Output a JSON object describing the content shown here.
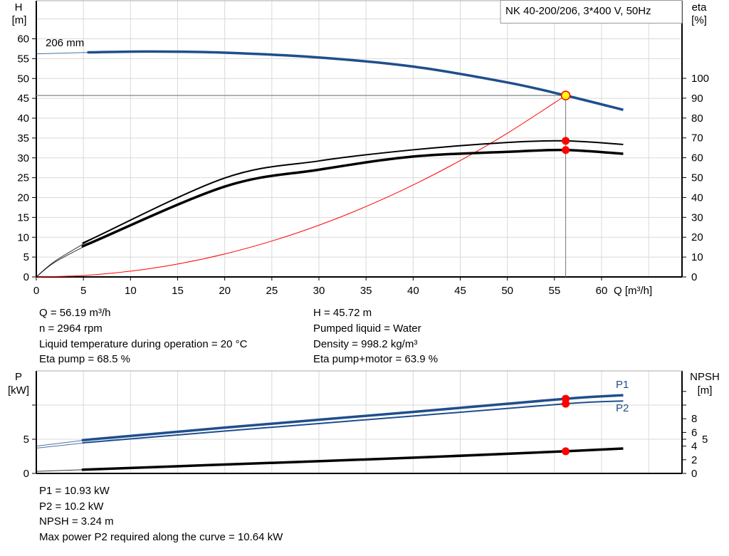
{
  "title_box": "NK 40-200/206, 3*400 V, 50Hz",
  "chart_data": [
    {
      "type": "line",
      "name": "head-efficiency",
      "xlabel": "Q [m³/h]",
      "ylabel_left": {
        "name": "H",
        "unit": "[m]"
      },
      "ylabel_right": {
        "name": "eta",
        "unit": "[%]"
      },
      "xlim": [
        0,
        68.6
      ],
      "ylim_left": [
        0,
        69.8
      ],
      "ylim_right": [
        0,
        139
      ],
      "x_ticks": [
        0,
        5,
        10,
        15,
        20,
        25,
        30,
        35,
        40,
        45,
        50,
        55,
        60
      ],
      "y_left_ticks": [
        0,
        5,
        10,
        15,
        20,
        25,
        30,
        35,
        40,
        45,
        50,
        55,
        60
      ],
      "y_right_ticks": [
        0,
        10,
        20,
        30,
        40,
        50,
        60,
        70,
        80,
        90,
        100
      ],
      "grid": true,
      "curve_label": "206 mm",
      "series": [
        {
          "key": "H",
          "axis": "left",
          "color": "#1f4e8c",
          "thin_until": 5.9,
          "x": [
            0,
            6,
            12,
            20,
            30,
            40,
            50,
            56.19,
            62.3
          ],
          "y": [
            56.2,
            56.6,
            56.8,
            56.5,
            55.3,
            53.0,
            49.0,
            45.72,
            42.1
          ]
        },
        {
          "key": "eta_pump",
          "axis": "right",
          "color": "#000000",
          "thin_until": 5.9,
          "x": [
            0,
            2,
            6,
            20,
            30,
            40,
            50,
            56.19,
            62.3
          ],
          "y": [
            0,
            8,
            19.4,
            49.8,
            58.4,
            64.0,
            67.7,
            68.5,
            66.7
          ]
        },
        {
          "key": "eta_pump_motor",
          "axis": "right",
          "color": "#000000",
          "thin_until": 5.9,
          "x": [
            0,
            2,
            6,
            20,
            30,
            40,
            50,
            56.19,
            62.3
          ],
          "y": [
            0,
            7.5,
            17.6,
            45.5,
            54.0,
            60.6,
            63.0,
            63.9,
            62.0
          ]
        },
        {
          "key": "system_curve",
          "axis": "left",
          "color": "#ff0000",
          "x": [
            0,
            5,
            10,
            15,
            20,
            25,
            30,
            35,
            40,
            45,
            50,
            56.19
          ],
          "y": [
            0,
            0.36,
            1.45,
            3.26,
            5.79,
            9.05,
            13.03,
            17.74,
            23.17,
            29.32,
            36.2,
            45.72
          ]
        }
      ],
      "operating_point": {
        "Q": 56.19,
        "H": 45.72,
        "eta_pump": 68.5,
        "eta_pump_motor": 63.9
      }
    },
    {
      "type": "line",
      "name": "power-npsh",
      "ylabel_left": {
        "name": "P",
        "unit": "[kW]"
      },
      "ylabel_right": {
        "name": "NPSH",
        "unit": "[m]"
      },
      "xlim": [
        0,
        68.6
      ],
      "ylim_left": [
        0,
        15
      ],
      "y_left_ticks": [
        0,
        5,
        10
      ],
      "y_left_tick_labels": [
        "0",
        "5",
        ""
      ],
      "y_right_ticks": [
        0,
        2,
        4,
        5,
        6,
        8,
        10,
        12
      ],
      "y_right_tick_labels": [
        "0",
        "2",
        "4",
        "5",
        "6",
        "8",
        "",
        ""
      ],
      "grid": true,
      "series": [
        {
          "key": "P1",
          "name": "P1",
          "axis": "left",
          "color": "#1f4e8c",
          "thin_until": 5.9,
          "x": [
            0,
            6,
            20,
            40,
            56.19,
            62.3
          ],
          "y": [
            4.0,
            5.0,
            6.7,
            9.0,
            10.93,
            11.45
          ]
        },
        {
          "key": "P2",
          "name": "P2",
          "axis": "left",
          "color": "#1f4e8c",
          "thin_until": 5.9,
          "x": [
            0,
            6,
            20,
            40,
            56.19,
            62.3
          ],
          "y": [
            3.7,
            4.6,
            6.2,
            8.4,
            10.2,
            10.6
          ]
        },
        {
          "key": "NPSH",
          "axis": "right",
          "color": "#000000",
          "thin_until": 5.9,
          "x": [
            0,
            6,
            20,
            40,
            56.19,
            62.3
          ],
          "y": [
            0.3,
            0.6,
            1.3,
            2.3,
            3.24,
            3.65
          ]
        }
      ],
      "operating_point": {
        "Q": 56.19,
        "P1": 10.93,
        "P2": 10.2,
        "NPSH": 3.24
      }
    }
  ],
  "info_top": {
    "left": [
      "Q = 56.19 m³/h",
      "n = 2964 rpm",
      "Liquid temperature during operation = 20 °C",
      "Eta pump = 68.5 %"
    ],
    "right": [
      "H = 45.72 m",
      "Pumped liquid = Water",
      "Density = 998.2 kg/m³",
      "Eta pump+motor = 63.9 %"
    ]
  },
  "info_bottom": [
    "P1 = 10.93 kW",
    "P2 = 10.2 kW",
    "NPSH = 3.24 m",
    "Max power P2 required along the curve = 10.64 kW"
  ],
  "colors": {
    "blue": "#1f4e8c",
    "red": "#ff0000",
    "op_point_fill": "#ffff00",
    "grid": "#d9d9d9"
  }
}
